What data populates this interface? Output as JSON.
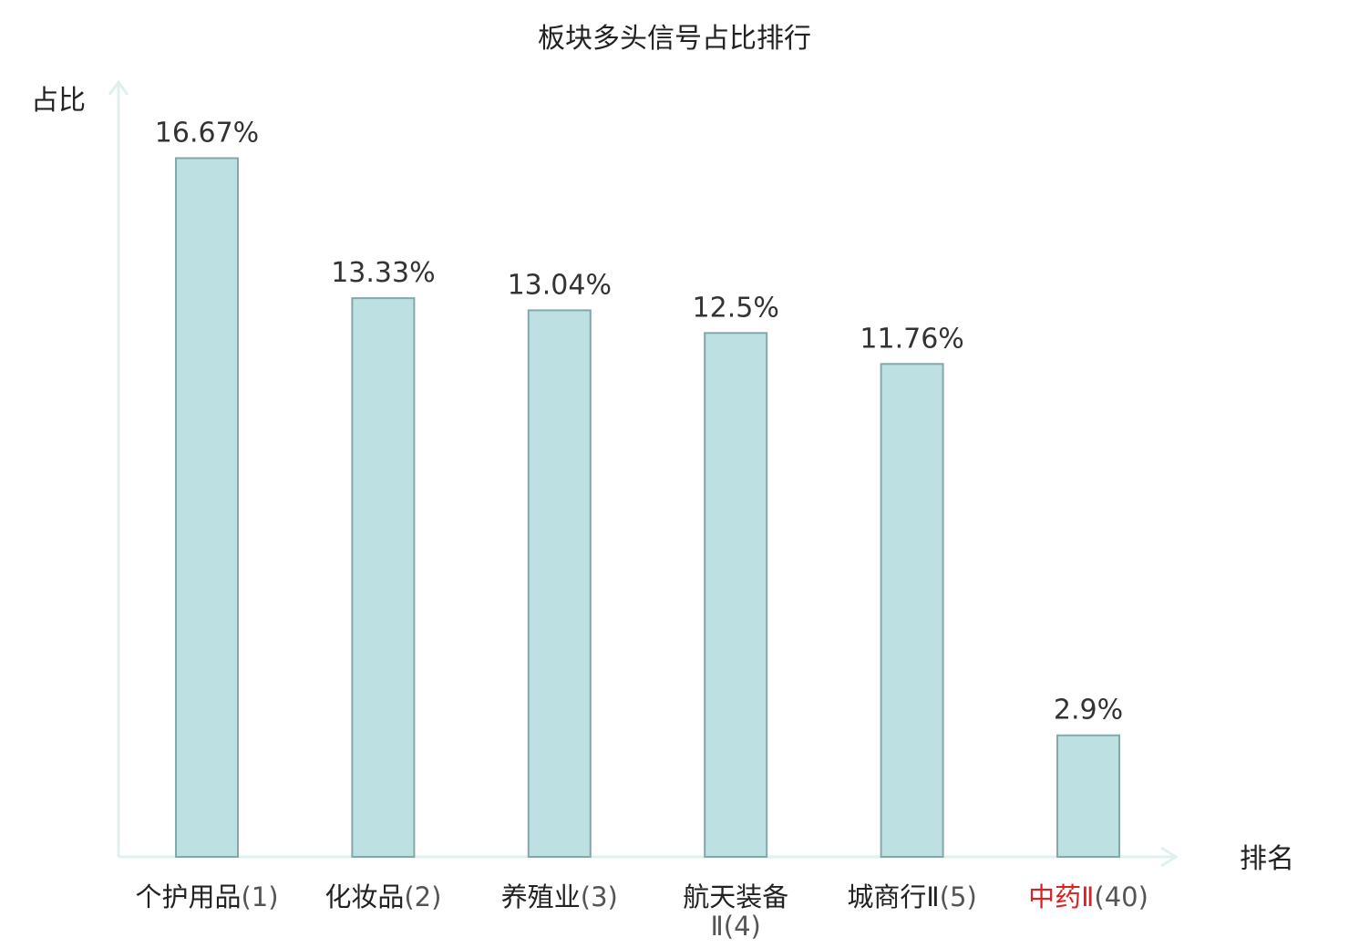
{
  "chart_data": {
    "type": "bar",
    "title": "板块多头信号占比排行",
    "ylabel": "占比",
    "xlabel": "排名",
    "unit": "%",
    "ylim": [
      0,
      18.4
    ],
    "grid": false,
    "categories": [
      {
        "name": "个护用品",
        "tag": "(1)",
        "highlight": false
      },
      {
        "name": "化妆品",
        "tag": "(2)",
        "highlight": false
      },
      {
        "name": "养殖业",
        "tag": "(3)",
        "highlight": false
      },
      {
        "name": "航天装备",
        "name2": "Ⅱ(4)",
        "highlight": false
      },
      {
        "name": "城商行Ⅱ",
        "tag": "(5)",
        "highlight": false
      },
      {
        "name": "中药Ⅱ",
        "tag": "(40)",
        "highlight": true
      }
    ],
    "values": [
      16.67,
      13.33,
      13.04,
      12.5,
      11.76,
      2.9
    ],
    "value_labels": [
      "16.67%",
      "13.33%",
      "13.04%",
      "12.5%",
      "11.76%",
      "2.9%"
    ],
    "colors": {
      "bar_fill": "#bde0e3",
      "bar_stroke": "#86a7aa",
      "axis": "#dff0ee",
      "highlight_text": "#e02020"
    }
  }
}
